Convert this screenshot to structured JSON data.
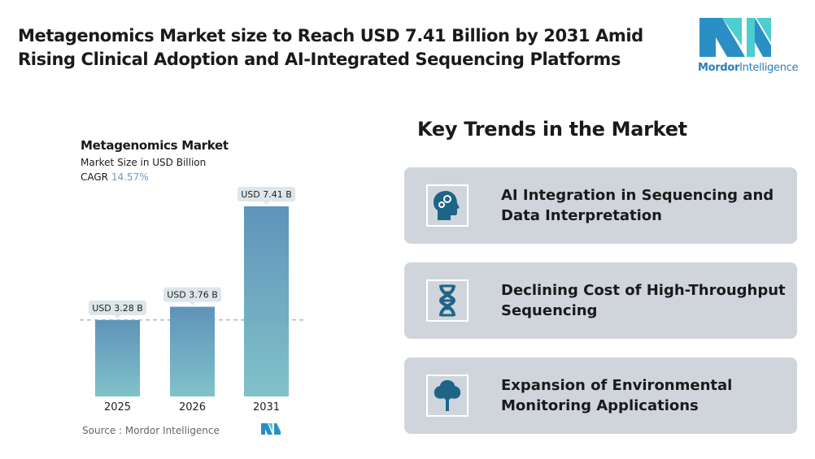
{
  "title": "Metagenomics Market size to Reach USD 7.41 Billion by 2031 Amid Rising Clinical Adoption and AI-Integrated Sequencing Platforms",
  "logo": {
    "brand": "Mordor",
    "suffix": "Intelligence"
  },
  "chart_data": {
    "type": "bar",
    "title": "Metagenomics Market",
    "subtitle": "Market Size in USD Billion",
    "cagr_label": "CAGR",
    "cagr_value": "14.57%",
    "categories": [
      "2025",
      "2026",
      "2031"
    ],
    "values": [
      3.28,
      3.76,
      7.41
    ],
    "data_labels": [
      "USD 3.28 B",
      "USD 3.76 B",
      "USD 7.41 B"
    ],
    "ylim": [
      0.5,
      7.41
    ],
    "reference_line": 3.28,
    "bar_colors": [
      "#5f93ba",
      "#80c2c9"
    ],
    "source": "Source :  Mordor Intelligence"
  },
  "trends": {
    "heading": "Key Trends in the Market",
    "items": [
      {
        "icon": "head-gears-icon",
        "label": "AI Integration in Sequencing and Data Interpretation"
      },
      {
        "icon": "dna-icon",
        "label": "Declining Cost of High-Throughput Sequencing"
      },
      {
        "icon": "tree-icon",
        "label": "Expansion of Environmental Monitoring Applications"
      }
    ],
    "icon_color": "#1e6487"
  }
}
